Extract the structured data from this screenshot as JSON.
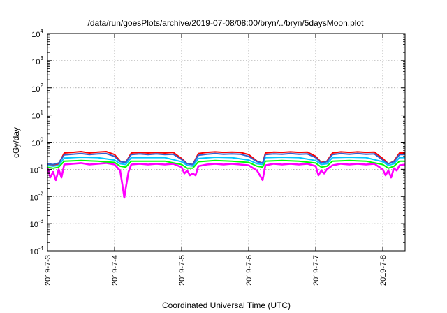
{
  "chart_data": {
    "type": "line",
    "title": "/data/run/goesPlots/archive/2019-07-08/08:00/bryn/../bryn/5daysMoon.plot",
    "xlabel": "Coordinated Universal Time (UTC)",
    "ylabel": "cGy/day",
    "yscale": "log",
    "ylim": [
      0.0001,
      10000
    ],
    "yticks": [
      {
        "base": "10",
        "exp": "4",
        "value": 10000
      },
      {
        "base": "10",
        "exp": "3",
        "value": 1000
      },
      {
        "base": "10",
        "exp": "2",
        "value": 100
      },
      {
        "base": "10",
        "exp": "1",
        "value": 10
      },
      {
        "base": "10",
        "exp": "0",
        "value": 1
      },
      {
        "base": "10",
        "exp": "-1",
        "value": 0.1
      },
      {
        "base": "10",
        "exp": "-2",
        "value": 0.01
      },
      {
        "base": "10",
        "exp": "-3",
        "value": 0.001
      },
      {
        "base": "10",
        "exp": "-4",
        "value": 0.0001
      }
    ],
    "xlim": [
      "2019-07-03T00:00",
      "2019-07-08T08:00"
    ],
    "xticks": [
      "2019-7-3",
      "2019-7-4",
      "2019-7-5",
      "2019-7-6",
      "2019-7-7",
      "2019-7-8"
    ],
    "grid": true,
    "legend": "none",
    "series": [
      {
        "color": "#ff00ff",
        "points": [
          [
            "2019-07-03T00:00",
            0.12
          ],
          [
            "2019-07-03T01:00",
            0.05
          ],
          [
            "2019-07-03T02:00",
            0.08
          ],
          [
            "2019-07-03T03:00",
            0.04
          ],
          [
            "2019-07-03T04:00",
            0.1
          ],
          [
            "2019-07-03T05:00",
            0.05
          ],
          [
            "2019-07-03T06:00",
            0.15
          ],
          [
            "2019-07-03T09:00",
            0.16
          ],
          [
            "2019-07-03T12:00",
            0.17
          ],
          [
            "2019-07-03T15:00",
            0.15
          ],
          [
            "2019-07-03T18:00",
            0.16
          ],
          [
            "2019-07-03T21:00",
            0.17
          ],
          [
            "2019-07-04T00:00",
            0.15
          ],
          [
            "2019-07-04T02:00",
            0.09
          ],
          [
            "2019-07-04T03:00",
            0.02
          ],
          [
            "2019-07-04T03:30",
            0.009
          ],
          [
            "2019-07-04T04:00",
            0.02
          ],
          [
            "2019-07-04T05:00",
            0.08
          ],
          [
            "2019-07-04T06:00",
            0.15
          ],
          [
            "2019-07-04T09:00",
            0.16
          ],
          [
            "2019-07-04T12:00",
            0.15
          ],
          [
            "2019-07-04T15:00",
            0.16
          ],
          [
            "2019-07-04T18:00",
            0.15
          ],
          [
            "2019-07-04T21:00",
            0.16
          ],
          [
            "2019-07-05T00:00",
            0.12
          ],
          [
            "2019-07-05T01:00",
            0.07
          ],
          [
            "2019-07-05T02:00",
            0.09
          ],
          [
            "2019-07-05T03:00",
            0.06
          ],
          [
            "2019-07-05T04:00",
            0.07
          ],
          [
            "2019-07-05T05:00",
            0.06
          ],
          [
            "2019-07-05T06:00",
            0.13
          ],
          [
            "2019-07-05T09:00",
            0.15
          ],
          [
            "2019-07-05T12:00",
            0.16
          ],
          [
            "2019-07-05T15:00",
            0.15
          ],
          [
            "2019-07-05T18:00",
            0.16
          ],
          [
            "2019-07-05T21:00",
            0.15
          ],
          [
            "2019-07-06T00:00",
            0.14
          ],
          [
            "2019-07-06T03:00",
            0.09
          ],
          [
            "2019-07-06T05:00",
            0.04
          ],
          [
            "2019-07-06T06:00",
            0.14
          ],
          [
            "2019-07-06T09:00",
            0.16
          ],
          [
            "2019-07-06T12:00",
            0.15
          ],
          [
            "2019-07-06T15:00",
            0.16
          ],
          [
            "2019-07-06T18:00",
            0.15
          ],
          [
            "2019-07-06T21:00",
            0.16
          ],
          [
            "2019-07-07T00:00",
            0.13
          ],
          [
            "2019-07-07T01:00",
            0.06
          ],
          [
            "2019-07-07T02:00",
            0.09
          ],
          [
            "2019-07-07T03:00",
            0.07
          ],
          [
            "2019-07-07T04:00",
            0.1
          ],
          [
            "2019-07-07T06:00",
            0.14
          ],
          [
            "2019-07-07T09:00",
            0.16
          ],
          [
            "2019-07-07T12:00",
            0.15
          ],
          [
            "2019-07-07T15:00",
            0.16
          ],
          [
            "2019-07-07T18:00",
            0.15
          ],
          [
            "2019-07-07T21:00",
            0.16
          ],
          [
            "2019-07-08T00:00",
            0.1
          ],
          [
            "2019-07-08T01:00",
            0.06
          ],
          [
            "2019-07-08T02:00",
            0.09
          ],
          [
            "2019-07-08T03:00",
            0.05
          ],
          [
            "2019-07-08T04:00",
            0.11
          ],
          [
            "2019-07-08T05:00",
            0.09
          ],
          [
            "2019-07-08T06:00",
            0.14
          ],
          [
            "2019-07-08T08:00",
            0.15
          ]
        ]
      },
      {
        "color": "#ff0000",
        "points": [
          [
            "2019-07-03T00:00",
            0.15
          ],
          [
            "2019-07-03T02:00",
            0.14
          ],
          [
            "2019-07-03T04:00",
            0.16
          ],
          [
            "2019-07-03T06:00",
            0.4
          ],
          [
            "2019-07-03T09:00",
            0.42
          ],
          [
            "2019-07-03T12:00",
            0.45
          ],
          [
            "2019-07-03T15:00",
            0.4
          ],
          [
            "2019-07-03T18:00",
            0.43
          ],
          [
            "2019-07-03T21:00",
            0.45
          ],
          [
            "2019-07-04T00:00",
            0.35
          ],
          [
            "2019-07-04T02:00",
            0.2
          ],
          [
            "2019-07-04T04:00",
            0.18
          ],
          [
            "2019-07-04T06:00",
            0.4
          ],
          [
            "2019-07-04T09:00",
            0.42
          ],
          [
            "2019-07-04T12:00",
            0.4
          ],
          [
            "2019-07-04T15:00",
            0.42
          ],
          [
            "2019-07-04T18:00",
            0.4
          ],
          [
            "2019-07-04T21:00",
            0.42
          ],
          [
            "2019-07-05T00:00",
            0.25
          ],
          [
            "2019-07-05T02:00",
            0.16
          ],
          [
            "2019-07-05T04:00",
            0.15
          ],
          [
            "2019-07-05T06:00",
            0.38
          ],
          [
            "2019-07-05T09:00",
            0.42
          ],
          [
            "2019-07-05T12:00",
            0.44
          ],
          [
            "2019-07-05T15:00",
            0.42
          ],
          [
            "2019-07-05T18:00",
            0.43
          ],
          [
            "2019-07-05T21:00",
            0.42
          ],
          [
            "2019-07-06T00:00",
            0.35
          ],
          [
            "2019-07-06T03:00",
            0.2
          ],
          [
            "2019-07-06T05:00",
            0.17
          ],
          [
            "2019-07-06T06:00",
            0.4
          ],
          [
            "2019-07-06T09:00",
            0.43
          ],
          [
            "2019-07-06T12:00",
            0.42
          ],
          [
            "2019-07-06T15:00",
            0.44
          ],
          [
            "2019-07-06T18:00",
            0.42
          ],
          [
            "2019-07-06T21:00",
            0.43
          ],
          [
            "2019-07-07T00:00",
            0.3
          ],
          [
            "2019-07-07T02:00",
            0.18
          ],
          [
            "2019-07-07T04:00",
            0.2
          ],
          [
            "2019-07-07T06:00",
            0.4
          ],
          [
            "2019-07-07T09:00",
            0.44
          ],
          [
            "2019-07-07T12:00",
            0.42
          ],
          [
            "2019-07-07T15:00",
            0.44
          ],
          [
            "2019-07-07T18:00",
            0.42
          ],
          [
            "2019-07-07T21:00",
            0.43
          ],
          [
            "2019-07-08T00:00",
            0.25
          ],
          [
            "2019-07-08T02:00",
            0.16
          ],
          [
            "2019-07-08T04:00",
            0.2
          ],
          [
            "2019-07-08T06:00",
            0.4
          ],
          [
            "2019-07-08T08:00",
            0.4
          ]
        ]
      },
      {
        "color": "#00ff00",
        "points": [
          [
            "2019-07-03T00:00",
            0.12
          ],
          [
            "2019-07-03T02:00",
            0.11
          ],
          [
            "2019-07-03T04:00",
            0.12
          ],
          [
            "2019-07-03T06:00",
            0.2
          ],
          [
            "2019-07-03T12:00",
            0.21
          ],
          [
            "2019-07-03T18:00",
            0.2
          ],
          [
            "2019-07-04T00:00",
            0.18
          ],
          [
            "2019-07-04T02:00",
            0.13
          ],
          [
            "2019-07-04T04:00",
            0.12
          ],
          [
            "2019-07-04T06:00",
            0.2
          ],
          [
            "2019-07-04T12:00",
            0.2
          ],
          [
            "2019-07-04T18:00",
            0.2
          ],
          [
            "2019-07-05T00:00",
            0.15
          ],
          [
            "2019-07-05T02:00",
            0.11
          ],
          [
            "2019-07-05T04:00",
            0.11
          ],
          [
            "2019-07-05T06:00",
            0.19
          ],
          [
            "2019-07-05T12:00",
            0.21
          ],
          [
            "2019-07-05T18:00",
            0.2
          ],
          [
            "2019-07-06T00:00",
            0.18
          ],
          [
            "2019-07-06T03:00",
            0.13
          ],
          [
            "2019-07-06T05:00",
            0.12
          ],
          [
            "2019-07-06T06:00",
            0.2
          ],
          [
            "2019-07-06T12:00",
            0.21
          ],
          [
            "2019-07-06T18:00",
            0.2
          ],
          [
            "2019-07-07T00:00",
            0.17
          ],
          [
            "2019-07-07T02:00",
            0.12
          ],
          [
            "2019-07-07T04:00",
            0.13
          ],
          [
            "2019-07-07T06:00",
            0.2
          ],
          [
            "2019-07-07T12:00",
            0.21
          ],
          [
            "2019-07-07T18:00",
            0.2
          ],
          [
            "2019-07-08T00:00",
            0.15
          ],
          [
            "2019-07-08T02:00",
            0.11
          ],
          [
            "2019-07-08T04:00",
            0.13
          ],
          [
            "2019-07-08T06:00",
            0.2
          ],
          [
            "2019-07-08T08:00",
            0.2
          ]
        ]
      },
      {
        "color": "#00c8ff",
        "points": [
          [
            "2019-07-03T00:00",
            0.14
          ],
          [
            "2019-07-03T02:00",
            0.13
          ],
          [
            "2019-07-03T04:00",
            0.14
          ],
          [
            "2019-07-03T06:00",
            0.26
          ],
          [
            "2019-07-03T12:00",
            0.28
          ],
          [
            "2019-07-03T18:00",
            0.27
          ],
          [
            "2019-07-04T00:00",
            0.22
          ],
          [
            "2019-07-04T02:00",
            0.16
          ],
          [
            "2019-07-04T04:00",
            0.15
          ],
          [
            "2019-07-04T06:00",
            0.27
          ],
          [
            "2019-07-04T12:00",
            0.27
          ],
          [
            "2019-07-04T18:00",
            0.27
          ],
          [
            "2019-07-05T00:00",
            0.19
          ],
          [
            "2019-07-05T02:00",
            0.14
          ],
          [
            "2019-07-05T04:00",
            0.13
          ],
          [
            "2019-07-05T06:00",
            0.25
          ],
          [
            "2019-07-05T12:00",
            0.28
          ],
          [
            "2019-07-05T18:00",
            0.27
          ],
          [
            "2019-07-06T00:00",
            0.22
          ],
          [
            "2019-07-06T03:00",
            0.16
          ],
          [
            "2019-07-06T05:00",
            0.15
          ],
          [
            "2019-07-06T06:00",
            0.27
          ],
          [
            "2019-07-06T12:00",
            0.28
          ],
          [
            "2019-07-06T18:00",
            0.27
          ],
          [
            "2019-07-07T00:00",
            0.21
          ],
          [
            "2019-07-07T02:00",
            0.15
          ],
          [
            "2019-07-07T04:00",
            0.16
          ],
          [
            "2019-07-07T06:00",
            0.27
          ],
          [
            "2019-07-07T12:00",
            0.28
          ],
          [
            "2019-07-07T18:00",
            0.27
          ],
          [
            "2019-07-08T00:00",
            0.19
          ],
          [
            "2019-07-08T02:00",
            0.14
          ],
          [
            "2019-07-08T04:00",
            0.16
          ],
          [
            "2019-07-08T06:00",
            0.27
          ],
          [
            "2019-07-08T08:00",
            0.27
          ]
        ]
      },
      {
        "color": "#3060d0",
        "points": [
          [
            "2019-07-03T00:00",
            0.16
          ],
          [
            "2019-07-03T02:00",
            0.15
          ],
          [
            "2019-07-03T04:00",
            0.17
          ],
          [
            "2019-07-03T06:00",
            0.34
          ],
          [
            "2019-07-03T09:00",
            0.36
          ],
          [
            "2019-07-03T12:00",
            0.38
          ],
          [
            "2019-07-03T15:00",
            0.35
          ],
          [
            "2019-07-03T18:00",
            0.37
          ],
          [
            "2019-07-03T21:00",
            0.38
          ],
          [
            "2019-07-04T00:00",
            0.3
          ],
          [
            "2019-07-04T02:00",
            0.19
          ],
          [
            "2019-07-04T04:00",
            0.18
          ],
          [
            "2019-07-04T06:00",
            0.35
          ],
          [
            "2019-07-04T09:00",
            0.37
          ],
          [
            "2019-07-04T12:00",
            0.35
          ],
          [
            "2019-07-04T15:00",
            0.37
          ],
          [
            "2019-07-04T18:00",
            0.35
          ],
          [
            "2019-07-04T21:00",
            0.36
          ],
          [
            "2019-07-05T00:00",
            0.23
          ],
          [
            "2019-07-05T02:00",
            0.16
          ],
          [
            "2019-07-05T04:00",
            0.15
          ],
          [
            "2019-07-05T06:00",
            0.33
          ],
          [
            "2019-07-05T09:00",
            0.36
          ],
          [
            "2019-07-05T12:00",
            0.38
          ],
          [
            "2019-07-05T15:00",
            0.36
          ],
          [
            "2019-07-05T18:00",
            0.37
          ],
          [
            "2019-07-05T21:00",
            0.36
          ],
          [
            "2019-07-06T00:00",
            0.3
          ],
          [
            "2019-07-06T03:00",
            0.19
          ],
          [
            "2019-07-06T05:00",
            0.17
          ],
          [
            "2019-07-06T06:00",
            0.35
          ],
          [
            "2019-07-06T09:00",
            0.37
          ],
          [
            "2019-07-06T12:00",
            0.36
          ],
          [
            "2019-07-06T15:00",
            0.38
          ],
          [
            "2019-07-06T18:00",
            0.36
          ],
          [
            "2019-07-06T21:00",
            0.37
          ],
          [
            "2019-07-07T00:00",
            0.27
          ],
          [
            "2019-07-07T02:00",
            0.17
          ],
          [
            "2019-07-07T04:00",
            0.19
          ],
          [
            "2019-07-07T06:00",
            0.35
          ],
          [
            "2019-07-07T09:00",
            0.38
          ],
          [
            "2019-07-07T12:00",
            0.36
          ],
          [
            "2019-07-07T15:00",
            0.38
          ],
          [
            "2019-07-07T18:00",
            0.36
          ],
          [
            "2019-07-07T21:00",
            0.37
          ],
          [
            "2019-07-08T00:00",
            0.22
          ],
          [
            "2019-07-08T02:00",
            0.16
          ],
          [
            "2019-07-08T04:00",
            0.19
          ],
          [
            "2019-07-08T06:00",
            0.35
          ],
          [
            "2019-07-08T08:00",
            0.35
          ]
        ]
      }
    ]
  }
}
